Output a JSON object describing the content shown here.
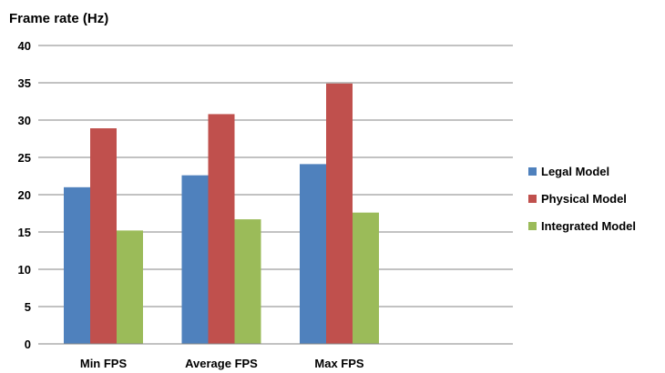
{
  "chart_data": {
    "type": "bar",
    "title": "Frame rate (Hz)",
    "xlabel": "",
    "ylabel": "",
    "categories": [
      "Min FPS",
      "Average FPS",
      "Max FPS"
    ],
    "ylim": [
      0,
      40
    ],
    "yticks": [
      0,
      5,
      10,
      15,
      20,
      25,
      30,
      35,
      40
    ],
    "grid": true,
    "legend_position": "right",
    "series": [
      {
        "name": "Legal Model",
        "color": "#4F81BD",
        "values": [
          21.0,
          22.6,
          24.1
        ]
      },
      {
        "name": "Physical Model",
        "color": "#C0504D",
        "values": [
          28.9,
          30.8,
          34.9
        ]
      },
      {
        "name": "Integrated Model",
        "color": "#9BBB59",
        "values": [
          15.2,
          16.7,
          17.6
        ]
      }
    ]
  }
}
